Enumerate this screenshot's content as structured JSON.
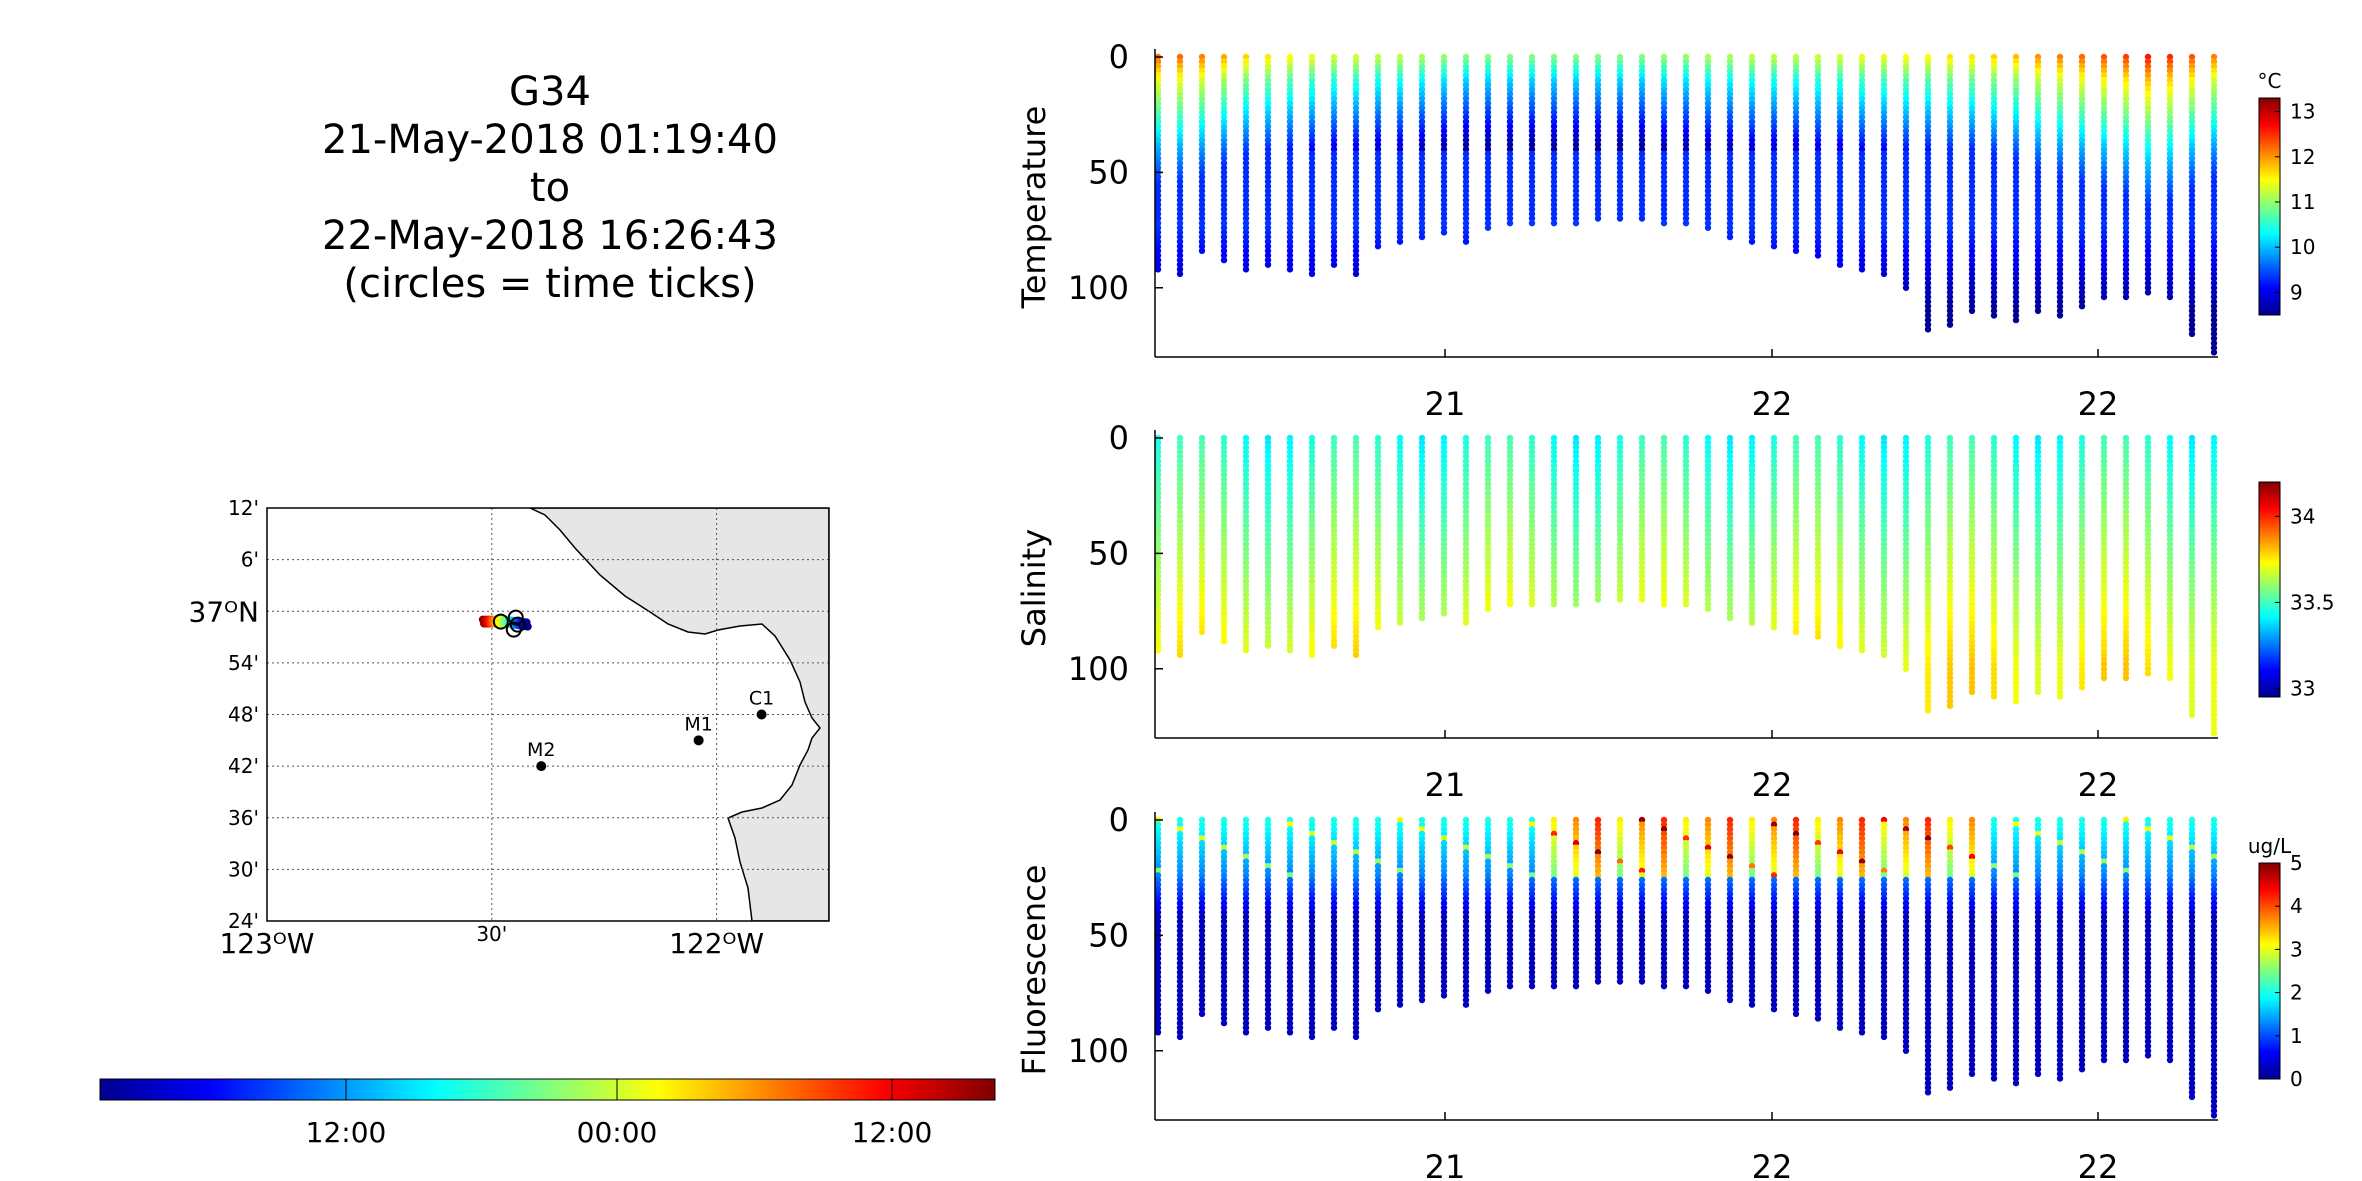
{
  "title": {
    "glider": "G34",
    "start": "21-May-2018 01:19:40",
    "joiner": "to",
    "end": "22-May-2018 16:26:43",
    "note": "(circles = time ticks)"
  },
  "map": {
    "lat_ticks": [
      "12'",
      "6'",
      "37ᴼN",
      "54'",
      "48'",
      "42'",
      "36'",
      "30'",
      "24'"
    ],
    "lon_ticks": [
      "123ᴼW",
      "30'",
      "122ᴼW"
    ],
    "stations": [
      {
        "name": "C1",
        "lon": -121.9,
        "lat": 36.8
      },
      {
        "name": "M1",
        "lon": -122.04,
        "lat": 36.75
      },
      {
        "name": "M2",
        "lon": -122.39,
        "lat": 36.7
      }
    ],
    "land_color": "#e6e6e6",
    "track": {
      "lon_start": -122.52,
      "lon_end": -122.42,
      "lat": 36.98
    }
  },
  "time_colorbar": {
    "tick_labels": [
      "12:00",
      "00:00",
      "12:00"
    ],
    "colormap": "jet"
  },
  "chart_data": [
    {
      "type": "scatter",
      "ylabel": "Temperature",
      "colorbar_unit": "°C",
      "colorbar_ticks": [
        9,
        10,
        11,
        12,
        13
      ],
      "colorbar_range": [
        8.5,
        13.3
      ],
      "x_tick_labels": [
        "21",
        "22",
        "22"
      ],
      "y_ticks": [
        0,
        50,
        100
      ],
      "ylim": [
        0,
        130
      ],
      "y_reversed": true,
      "n_profiles": 49,
      "max_depths": [
        92,
        95,
        85,
        88,
        92,
        90,
        92,
        95,
        90,
        95,
        82,
        80,
        78,
        77,
        80,
        75,
        73,
        72,
        73,
        72,
        70,
        70,
        70,
        72,
        73,
        75,
        78,
        80,
        82,
        85,
        87,
        90,
        92,
        95,
        100,
        118,
        116,
        110,
        112,
        115,
        110,
        112,
        108,
        105,
        104,
        103,
        105,
        120,
        128
      ],
      "surface_temps": [
        12.2,
        12.2,
        12.1,
        11.9,
        11.7,
        11.6,
        11.5,
        11.4,
        11.3,
        11.3,
        11.2,
        11.2,
        11.1,
        11.0,
        10.9,
        10.9,
        10.9,
        10.9,
        10.9,
        10.9,
        10.9,
        10.9,
        10.9,
        11.0,
        11.0,
        11.1,
        11.1,
        11.2,
        11.2,
        11.2,
        11.3,
        11.3,
        11.4,
        11.4,
        11.5,
        11.5,
        11.6,
        11.6,
        11.7,
        11.8,
        12.0,
        12.1,
        12.2,
        12.3,
        12.4,
        12.6,
        12.5,
        12.3,
        12.1
      ]
    },
    {
      "type": "scatter",
      "ylabel": "Salinity",
      "colorbar_unit": "",
      "colorbar_ticks": [
        33,
        33.5,
        34
      ],
      "colorbar_range": [
        32.95,
        34.2
      ],
      "x_tick_labels": [
        "21",
        "22",
        "22"
      ],
      "y_ticks": [
        0,
        50,
        100
      ],
      "ylim": [
        0,
        130
      ],
      "y_reversed": true
    },
    {
      "type": "scatter",
      "ylabel": "Fluorescence",
      "colorbar_unit": "ug/L",
      "colorbar_ticks": [
        0,
        1,
        2,
        3,
        4,
        5
      ],
      "colorbar_range": [
        0,
        5
      ],
      "x_tick_labels": [
        "21",
        "22",
        "22"
      ],
      "y_ticks": [
        0,
        50,
        100
      ],
      "ylim": [
        0,
        130
      ],
      "y_reversed": true
    }
  ]
}
